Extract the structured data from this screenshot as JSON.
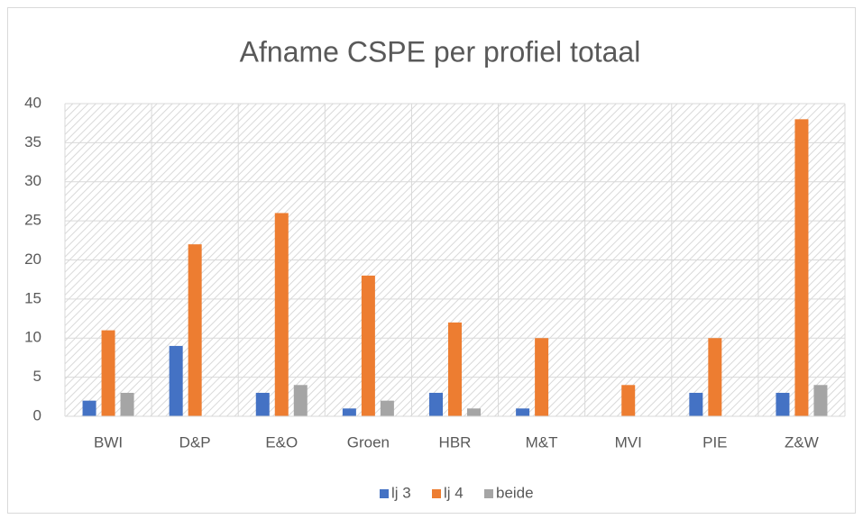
{
  "chart_data": {
    "type": "bar",
    "title": "Afname CSPE per profiel totaal",
    "categories": [
      "BWI",
      "D&P",
      "E&O",
      "Groen",
      "HBR",
      "M&T",
      "MVI",
      "PIE",
      "Z&W"
    ],
    "series": [
      {
        "name": "lj 3",
        "color": "#4472c4",
        "values": [
          2,
          9,
          3,
          1,
          3,
          1,
          0,
          3,
          3
        ]
      },
      {
        "name": "lj 4",
        "color": "#ed7d31",
        "values": [
          11,
          22,
          26,
          18,
          12,
          10,
          4,
          10,
          38
        ]
      },
      {
        "name": "beide",
        "color": "#a5a5a5",
        "values": [
          3,
          0,
          4,
          2,
          1,
          0,
          0,
          0,
          4
        ]
      }
    ],
    "ylim": [
      0,
      40
    ],
    "yticks": [
      0,
      5,
      10,
      15,
      20,
      25,
      30,
      35,
      40
    ],
    "grid": true,
    "legend": "bottom"
  }
}
